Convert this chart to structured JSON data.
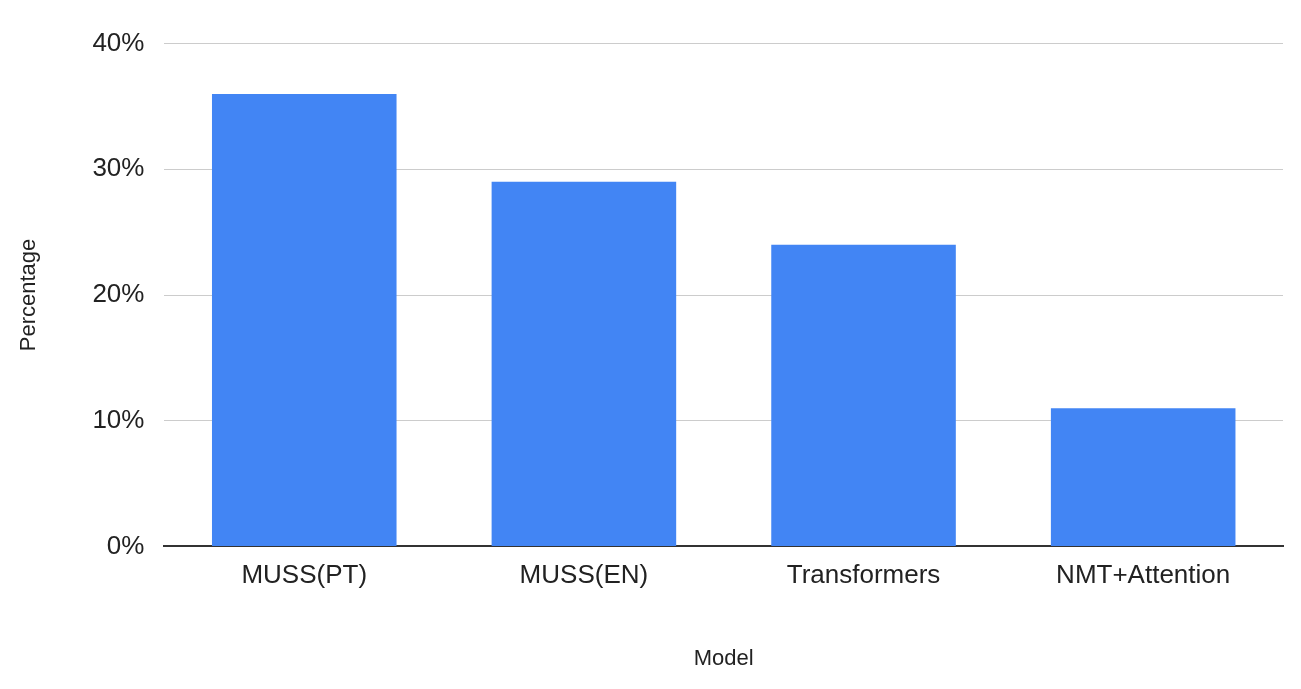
{
  "chart_data": {
    "type": "bar",
    "xlabel": "Model",
    "ylabel": "Percentage",
    "categories": [
      "MUSS(PT)",
      "MUSS(EN)",
      "Transformers",
      "NMT+Attention"
    ],
    "values": [
      36,
      29,
      24,
      11
    ],
    "color": "#4285f4",
    "ylim": [
      0,
      40
    ],
    "yticks": [
      {
        "value": 0,
        "label": "0%"
      },
      {
        "value": 10,
        "label": "10%"
      },
      {
        "value": 20,
        "label": "20%"
      },
      {
        "value": 30,
        "label": "30%"
      },
      {
        "value": 40,
        "label": "40%"
      }
    ],
    "grid": "y",
    "legend": false
  }
}
